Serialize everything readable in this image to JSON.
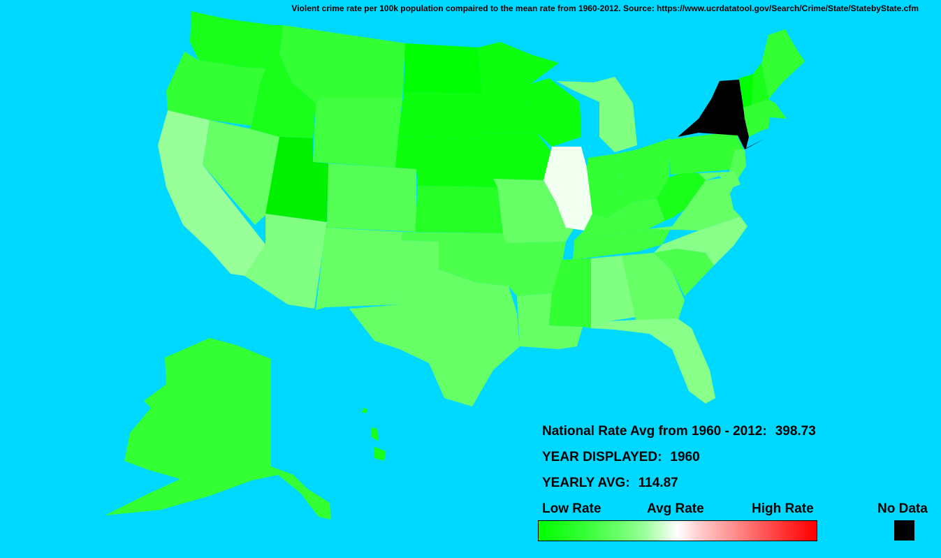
{
  "caption": "Violent crime rate per 100k population compaired to the mean rate from 1960-2012. Source: https://www.ucrdatatool.gov/Search/Crime/State/StatebyState.cfm",
  "info": {
    "national_label": "National Rate Avg from 1960 - 2012:",
    "national_value": "398.73",
    "year_label": "YEAR DISPLAYED:",
    "year_value": "1960",
    "yearly_label": "YEARLY AVG:",
    "yearly_value": "114.87"
  },
  "legend": {
    "low": "Low Rate",
    "avg": "Avg Rate",
    "high": "High Rate",
    "nodata": "No Data",
    "low_color": "#00ff00",
    "avg_color": "#ffffff",
    "high_color": "#ff0000",
    "nodata_color": "#000000"
  },
  "states": {
    "WA": "#1aff1a",
    "OR": "#33ff33",
    "CA": "#99ff99",
    "ID": "#1aff1a",
    "NV": "#66ff66",
    "MT": "#33ff33",
    "WY": "#40ff40",
    "UT": "#00f000",
    "AZ": "#80ff80",
    "CO": "#55ff55",
    "NM": "#66ff66",
    "ND": "#00ff00",
    "SD": "#0dff0d",
    "NE": "#0dff0d",
    "KS": "#26ff26",
    "OK": "#4dff4d",
    "TX": "#66ff66",
    "MN": "#0dff0d",
    "IA": "#0dff0d",
    "MO": "#66ff66",
    "AR": "#4dff4d",
    "LA": "#66ff66",
    "WI": "#0dff0d",
    "IL": "#f0fff0",
    "MI": "#80ff80",
    "IN": "#33ff33",
    "OH": "#33ff33",
    "KY": "#40ff40",
    "TN": "#40ff40",
    "MS": "#33ff33",
    "AL": "#80ff80",
    "GA": "#66ff66",
    "FL": "#88ff88",
    "SC": "#4dff4d",
    "NC": "#88ff88",
    "VA": "#66ff66",
    "WV": "#1aff1a",
    "PA": "#33ff33",
    "NY": "#000000",
    "NJ": "#55ff55",
    "DE": "#66ff66",
    "MD": "#66ff66",
    "VT": "#00ff00",
    "NH": "#1aff1a",
    "ME": "#33ff33",
    "MA": "#33ff33",
    "CT": "#33ff33",
    "RI": "#33ff33",
    "AK": "#33ff33",
    "HI": "#1aff1a"
  }
}
